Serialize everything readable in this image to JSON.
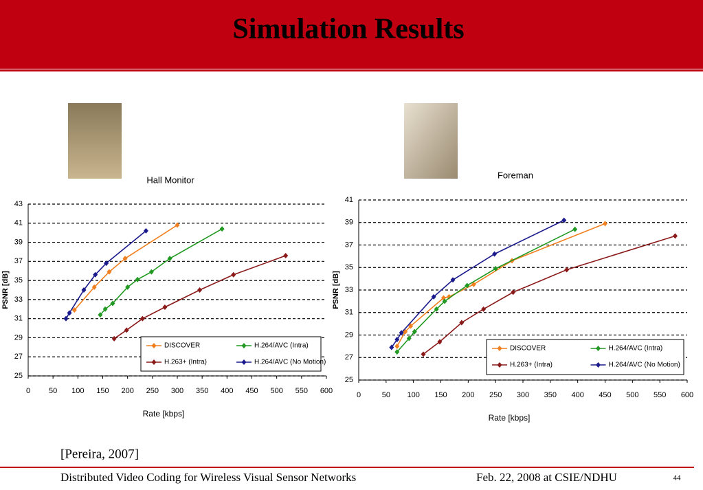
{
  "slide": {
    "title": "Simulation Results",
    "citation": "[Pereira, 2007]",
    "footer_left": "Distributed Video Coding for Wireless Visual Sensor Networks",
    "footer_right": "Feb. 22, 2008 at CSIE/NDHU",
    "page": "44"
  },
  "chart_data": [
    {
      "type": "line",
      "title": "Hall Monitor",
      "xlabel": "Rate [kbps]",
      "ylabel": "PSNR [dB]",
      "xlim": [
        0,
        600
      ],
      "xticks": [
        0,
        50,
        100,
        150,
        200,
        250,
        300,
        350,
        400,
        450,
        500,
        550,
        600
      ],
      "ylim": [
        25,
        43
      ],
      "yticks": [
        25,
        27,
        29,
        31,
        33,
        35,
        37,
        39,
        41,
        43
      ],
      "grid": true,
      "legend": "lower right",
      "series": [
        {
          "name": "DISCOVER",
          "color": "#f08020",
          "x": [
            93,
            133,
            163,
            195,
            300
          ],
          "values": [
            31.9,
            34.3,
            35.9,
            37.3,
            40.8
          ]
        },
        {
          "name": "H.264/AVC (Intra)",
          "color": "#229922",
          "x": [
            145,
            155,
            170,
            200,
            220,
            248,
            285,
            390
          ],
          "values": [
            31.4,
            32,
            32.6,
            34.3,
            35.1,
            35.9,
            37.3,
            40.4
          ]
        },
        {
          "name": "H.263+ (Intra)",
          "color": "#8b1a1a",
          "x": [
            173,
            198,
            230,
            275,
            345,
            413,
            518
          ],
          "values": [
            28.9,
            29.8,
            31,
            32.2,
            34,
            35.6,
            37.6
          ]
        },
        {
          "name": "H.264/AVC (No Motion)",
          "color": "#1a1a8c",
          "x": [
            76,
            83,
            112,
            135,
            157,
            237
          ],
          "values": [
            31,
            31.6,
            34,
            35.6,
            36.8,
            40.2
          ]
        }
      ]
    },
    {
      "type": "line",
      "title": "Foreman",
      "xlabel": "Rate [kbps]",
      "ylabel": "PSNR [dB]",
      "xlim": [
        0,
        600
      ],
      "xticks": [
        0,
        50,
        100,
        150,
        200,
        250,
        300,
        350,
        400,
        450,
        500,
        550,
        600
      ],
      "ylim": [
        25,
        41
      ],
      "yticks": [
        25,
        27,
        29,
        31,
        33,
        35,
        37,
        39,
        41
      ],
      "grid": true,
      "legend": "lower right",
      "series": [
        {
          "name": "DISCOVER",
          "color": "#f08020",
          "x": [
            70,
            85,
            95,
            155,
            165,
            210,
            280,
            450
          ],
          "values": [
            28,
            29.3,
            29.8,
            32.3,
            32.4,
            33.5,
            35.6,
            38.9
          ]
        },
        {
          "name": "H.264/AVC (Intra)",
          "color": "#229922",
          "x": [
            70,
            92,
            102,
            142,
            157,
            198,
            250,
            395
          ],
          "values": [
            27.5,
            28.7,
            29.3,
            31.3,
            32,
            33.4,
            34.9,
            38.4
          ]
        },
        {
          "name": "H.263+ (Intra)",
          "color": "#8b1a1a",
          "x": [
            118,
            148,
            188,
            228,
            282,
            380,
            578
          ],
          "values": [
            27.3,
            28.4,
            30.1,
            31.3,
            32.8,
            34.8,
            37.8
          ]
        },
        {
          "name": "H.264/AVC (No Motion)",
          "color": "#1a1a8c",
          "x": [
            60,
            70,
            78,
            137,
            172,
            248,
            375
          ],
          "values": [
            27.9,
            28.6,
            29.2,
            32.4,
            33.9,
            36.2,
            39.2
          ]
        }
      ]
    }
  ]
}
